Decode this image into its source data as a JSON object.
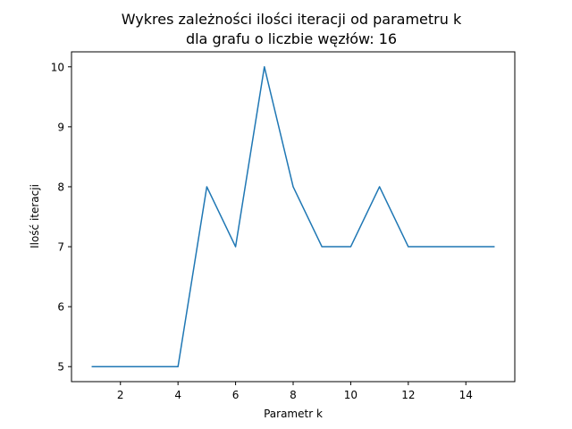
{
  "chart_data": {
    "type": "line",
    "title_line1": "Wykres zależności ilości iteracji od parametru k",
    "title_line2": "dla grafu o liczbie węzłów: 16",
    "xlabel": "Parametr k",
    "ylabel": "Ilość iteracji",
    "x": [
      1,
      2,
      3,
      4,
      5,
      6,
      7,
      8,
      9,
      10,
      11,
      12,
      13,
      14,
      15
    ],
    "series": [
      {
        "values": [
          5,
          5,
          5,
          5,
          8,
          7,
          10,
          8,
          7,
          7,
          8,
          7,
          7,
          7,
          7
        ],
        "color": "#1f77b4"
      }
    ],
    "xlim": [
      0.3,
      15.7
    ],
    "ylim": [
      4.75,
      10.25
    ],
    "xticks": [
      2,
      4,
      6,
      8,
      10,
      12,
      14
    ],
    "yticks": [
      5,
      6,
      7,
      8,
      9,
      10
    ],
    "grid": false
  }
}
